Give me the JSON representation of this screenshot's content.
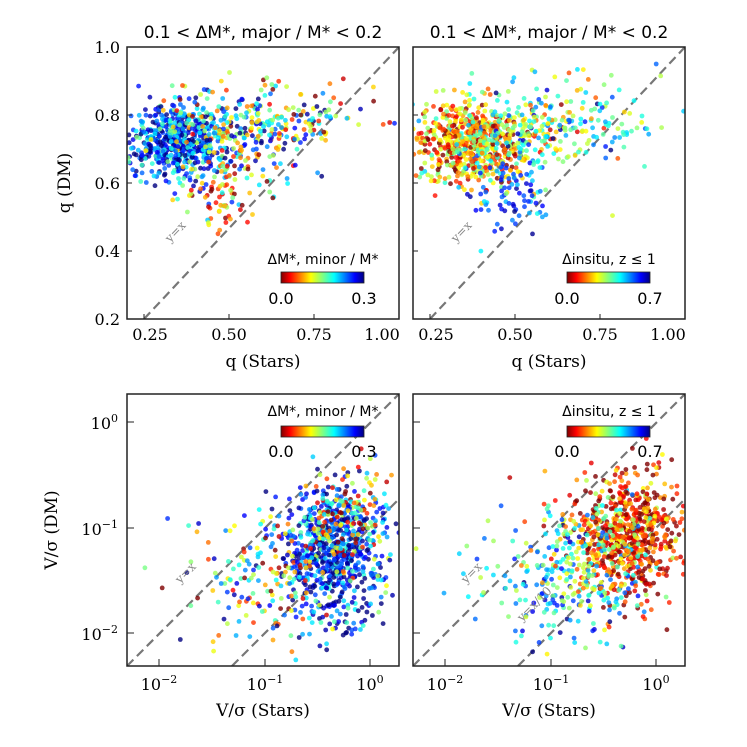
{
  "chart_data": [
    {
      "type": "scatter",
      "panel": "top-left",
      "title": "0.1 < ΔM*, major / M* < 0.2",
      "xlabel": "q (Stars)",
      "ylabel": "q (DM)",
      "xlim": [
        0.2,
        1.0
      ],
      "ylim": [
        0.2,
        1.0
      ],
      "xscale": "linear",
      "yscale": "linear",
      "xticks": [
        0.25,
        0.5,
        0.75,
        1.0
      ],
      "xticklabels": [
        "0.25",
        "0.50",
        "0.75",
        "1.00"
      ],
      "yticks": [
        0.2,
        0.4,
        0.6,
        0.8,
        1.0
      ],
      "yticklabels": [
        "0.2",
        "0.4",
        "0.6",
        "0.8",
        "1.0"
      ],
      "reference_lines": [
        {
          "label": "y=x",
          "slope": 1,
          "offset": 0
        }
      ],
      "colorbar": {
        "label": "ΔM*, minor / M*",
        "min": 0.0,
        "max": 0.3,
        "min_label": "0.0",
        "max_label": "0.3",
        "colormap": "jet",
        "placement": "lower-right"
      },
      "clusters": [
        {
          "x_mean": 0.34,
          "x_sd": 0.07,
          "y_mean": 0.72,
          "y_sd": 0.055,
          "n": 520,
          "c_mean": 0.05,
          "c_sd": 0.05
        },
        {
          "x_mean": 0.5,
          "x_sd": 0.12,
          "y_mean": 0.73,
          "y_sd": 0.07,
          "n": 260,
          "c_mean": 0.12,
          "c_sd": 0.08
        },
        {
          "x_mean": 0.65,
          "x_sd": 0.14,
          "y_mean": 0.79,
          "y_sd": 0.06,
          "n": 150,
          "c_mean": 0.17,
          "c_sd": 0.08
        },
        {
          "x_mean": 0.47,
          "x_sd": 0.06,
          "y_mean": 0.56,
          "y_sd": 0.05,
          "n": 70,
          "c_mean": 0.22,
          "c_sd": 0.07
        }
      ]
    },
    {
      "type": "scatter",
      "panel": "top-right",
      "title": "0.1 < ΔM*, major / M* < 0.2",
      "xlabel": "q (Stars)",
      "ylabel": "",
      "xlim": [
        0.2,
        1.0
      ],
      "ylim": [
        0.2,
        1.0
      ],
      "xscale": "linear",
      "yscale": "linear",
      "xticks": [
        0.25,
        0.5,
        0.75,
        1.0
      ],
      "xticklabels": [
        "0.25",
        "0.50",
        "0.75",
        "1.00"
      ],
      "reference_lines": [
        {
          "label": "y=x",
          "slope": 1,
          "offset": 0
        }
      ],
      "colorbar": {
        "label": "Δinsitu, z ≤ 1",
        "min": 0.0,
        "max": 0.7,
        "min_label": "0.0",
        "max_label": "0.7",
        "colormap": "jet",
        "placement": "lower-right"
      },
      "clusters": [
        {
          "x_mean": 0.36,
          "x_sd": 0.08,
          "y_mean": 0.72,
          "y_sd": 0.06,
          "n": 520,
          "c_mean": 0.5,
          "c_sd": 0.14
        },
        {
          "x_mean": 0.5,
          "x_sd": 0.12,
          "y_mean": 0.72,
          "y_sd": 0.07,
          "n": 260,
          "c_mean": 0.38,
          "c_sd": 0.14
        },
        {
          "x_mean": 0.66,
          "x_sd": 0.14,
          "y_mean": 0.78,
          "y_sd": 0.06,
          "n": 150,
          "c_mean": 0.3,
          "c_sd": 0.12
        },
        {
          "x_mean": 0.47,
          "x_sd": 0.06,
          "y_mean": 0.55,
          "y_sd": 0.05,
          "n": 70,
          "c_mean": 0.14,
          "c_sd": 0.07
        }
      ]
    },
    {
      "type": "scatter",
      "panel": "bottom-left",
      "title": "",
      "xlabel": "V/σ (Stars)",
      "ylabel": "V/σ (DM)",
      "xlim": [
        0.005,
        2.0
      ],
      "ylim": [
        0.005,
        2.0
      ],
      "xscale": "log",
      "yscale": "log",
      "xticks": [
        0.01,
        0.1,
        1.0
      ],
      "yticks": [
        0.01,
        0.1,
        1.0
      ],
      "reference_lines": [
        {
          "label": "y=x",
          "slope": 1,
          "offset": 0
        },
        {
          "label": "y=x/10",
          "slope": 1,
          "offset": -1
        }
      ],
      "colorbar": {
        "label": "ΔM*, minor / M*",
        "min": 0.0,
        "max": 0.3,
        "min_label": "0.0",
        "max_label": "0.3",
        "colormap": "jet",
        "placement": "top-right"
      },
      "clusters": [
        {
          "lx_mean": -0.3,
          "lx_sd": 0.25,
          "ly_mean": -1.2,
          "ly_sd": 0.3,
          "n": 650,
          "c_mean": 0.04,
          "c_sd": 0.05
        },
        {
          "lx_mean": -0.9,
          "lx_sd": 0.4,
          "ly_mean": -1.45,
          "ly_sd": 0.35,
          "n": 200,
          "c_mean": 0.15,
          "c_sd": 0.09
        },
        {
          "lx_mean": -0.2,
          "lx_sd": 0.2,
          "ly_mean": -0.85,
          "ly_sd": 0.25,
          "n": 150,
          "c_mean": 0.2,
          "c_sd": 0.08
        }
      ]
    },
    {
      "type": "scatter",
      "panel": "bottom-right",
      "title": "",
      "xlabel": "V/σ (Stars)",
      "ylabel": "",
      "xlim": [
        0.005,
        2.0
      ],
      "ylim": [
        0.005,
        2.0
      ],
      "xscale": "log",
      "yscale": "log",
      "xticks": [
        0.01,
        0.1,
        1.0
      ],
      "reference_lines": [
        {
          "label": "y=x",
          "slope": 1,
          "offset": 0
        },
        {
          "label": "y=x/10",
          "slope": 1,
          "offset": -1
        }
      ],
      "colorbar": {
        "label": "Δinsitu, z ≤ 1",
        "min": 0.0,
        "max": 0.7,
        "min_label": "0.0",
        "max_label": "0.7",
        "colormap": "jet",
        "placement": "top-right"
      },
      "clusters": [
        {
          "lx_mean": -0.25,
          "lx_sd": 0.25,
          "ly_mean": -1.05,
          "ly_sd": 0.28,
          "n": 650,
          "c_mean": 0.6,
          "c_sd": 0.12
        },
        {
          "lx_mean": -0.9,
          "lx_sd": 0.4,
          "ly_mean": -1.5,
          "ly_sd": 0.35,
          "n": 200,
          "c_mean": 0.22,
          "c_sd": 0.12
        },
        {
          "lx_mean": -0.6,
          "lx_sd": 0.3,
          "ly_mean": -1.2,
          "ly_sd": 0.3,
          "n": 150,
          "c_mean": 0.4,
          "c_sd": 0.12
        }
      ]
    }
  ]
}
